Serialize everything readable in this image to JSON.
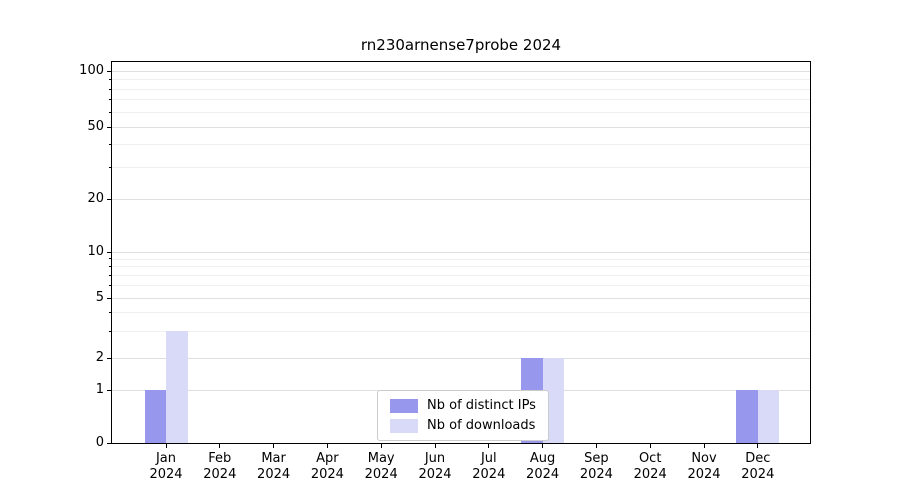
{
  "chart_data": {
    "type": "bar",
    "title": "rn230arnense7probe 2024",
    "categories": [
      "Jan 2024",
      "Feb 2024",
      "Mar 2024",
      "Apr 2024",
      "May 2024",
      "Jun 2024",
      "Jul 2024",
      "Aug 2024",
      "Sep 2024",
      "Oct 2024",
      "Nov 2024",
      "Dec 2024"
    ],
    "series": [
      {
        "name": "Nb of distinct IPs",
        "color": "#9797ee",
        "values": [
          1,
          0,
          0,
          0,
          0,
          0,
          0,
          2,
          0,
          0,
          0,
          1
        ]
      },
      {
        "name": "Nb of downloads",
        "color": "#d9d9f8",
        "values": [
          3,
          0,
          0,
          0,
          0,
          0,
          0,
          2,
          0,
          0,
          0,
          1
        ]
      }
    ],
    "yticks": [
      0,
      1,
      2,
      5,
      10,
      20,
      50,
      100
    ],
    "minor_gridlines": [
      3,
      4,
      6,
      7,
      8,
      9,
      30,
      40,
      60,
      70,
      80,
      90
    ],
    "ylim": [
      0,
      100
    ],
    "yscale": "log-like",
    "grid": true,
    "legend_position": "bottom-center-inside"
  }
}
